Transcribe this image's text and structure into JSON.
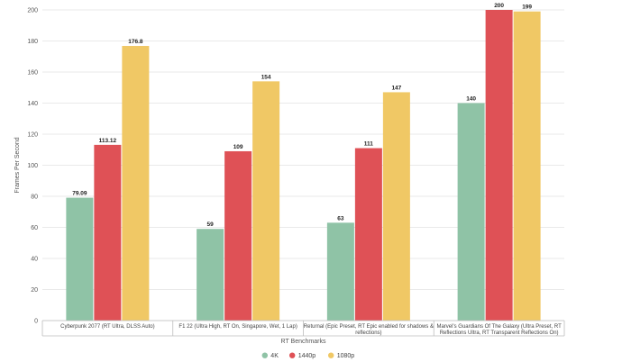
{
  "chart_data": {
    "type": "bar",
    "xlabel": "RT Benchmarks",
    "ylabel": "Frames Per Second",
    "ylim": [
      0,
      200
    ],
    "yticks": [
      0,
      20,
      40,
      60,
      80,
      100,
      120,
      140,
      160,
      180,
      200
    ],
    "grid": true,
    "legend_position": "bottom",
    "categories": [
      [
        "Cyberpunk 2077 (RT Ultra, DLSS Auto)"
      ],
      [
        "F1 22 (Ultra High, RT On, Singapore, Wet, 1 Lap)"
      ],
      [
        "Returnal (Epic Preset, RT Epic enabled for shadows &",
        "reflections)"
      ],
      [
        "Marvel's Guardians Of The Galaxy (Ultra Preset, RT",
        "Reflections Ultra, RT Transparent Reflections On)"
      ]
    ],
    "series": [
      {
        "name": "4K",
        "color": "#8fc3a6",
        "values": [
          79.09,
          59,
          63,
          140
        ],
        "labels": [
          "79.09",
          "59",
          "63",
          "140"
        ]
      },
      {
        "name": "1440p",
        "color": "#df5156",
        "values": [
          113.12,
          109,
          111,
          200
        ],
        "labels": [
          "113.12",
          "109",
          "111",
          "200"
        ]
      },
      {
        "name": "1080p",
        "color": "#f0c865",
        "values": [
          176.8,
          154,
          147,
          199
        ],
        "labels": [
          "176.8",
          "154",
          "147",
          "199"
        ]
      }
    ]
  }
}
